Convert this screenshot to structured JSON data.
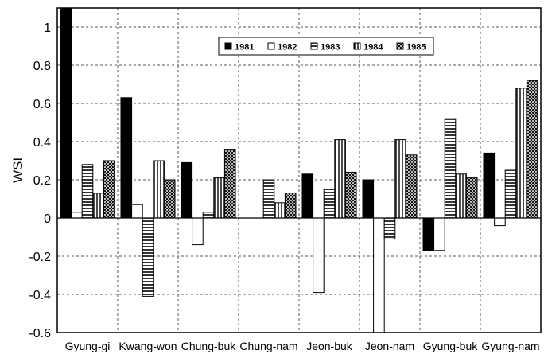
{
  "chart_data": {
    "type": "bar",
    "ylabel": "WSI",
    "xlabel": "",
    "ylim": [
      -0.6,
      1.1
    ],
    "yticks": [
      -0.6,
      -0.4,
      -0.2,
      0,
      0.2,
      0.4,
      0.6,
      0.8,
      1
    ],
    "ytick_labels": [
      "-0.6",
      "-0.4",
      "-0.2",
      "0",
      "0.2",
      "0.4",
      "0.6",
      "0.8",
      "1"
    ],
    "grid": "dashed",
    "legend_position": "top-right",
    "categories": [
      "Gyung-gi",
      "Kwang-won",
      "Chung-buk",
      "Chung-nam",
      "Jeon-buk",
      "Jeon-nam",
      "Gyung-buk",
      "Gyung-nam"
    ],
    "series": [
      {
        "name": "1981",
        "pattern": "solid",
        "values": [
          1.1,
          0.63,
          0.29,
          0.0,
          0.23,
          0.2,
          -0.17,
          0.34
        ]
      },
      {
        "name": "1982",
        "pattern": "hollow",
        "values": [
          0.03,
          0.07,
          -0.14,
          0.0,
          -0.39,
          -0.6,
          -0.17,
          -0.04
        ]
      },
      {
        "name": "1983",
        "pattern": "horizontal-lines",
        "values": [
          0.28,
          -0.41,
          0.03,
          0.2,
          0.15,
          -0.11,
          0.52,
          0.25
        ]
      },
      {
        "name": "1984",
        "pattern": "vertical-lines",
        "values": [
          0.13,
          0.3,
          0.21,
          0.08,
          0.41,
          0.41,
          0.23,
          0.68
        ]
      },
      {
        "name": "1985",
        "pattern": "crosshatch",
        "values": [
          0.3,
          0.2,
          0.36,
          0.13,
          0.24,
          0.33,
          0.21,
          0.72
        ]
      }
    ],
    "colors": {
      "bar_stroke": "#000000",
      "grid": "#555555",
      "axis": "#000000"
    }
  }
}
